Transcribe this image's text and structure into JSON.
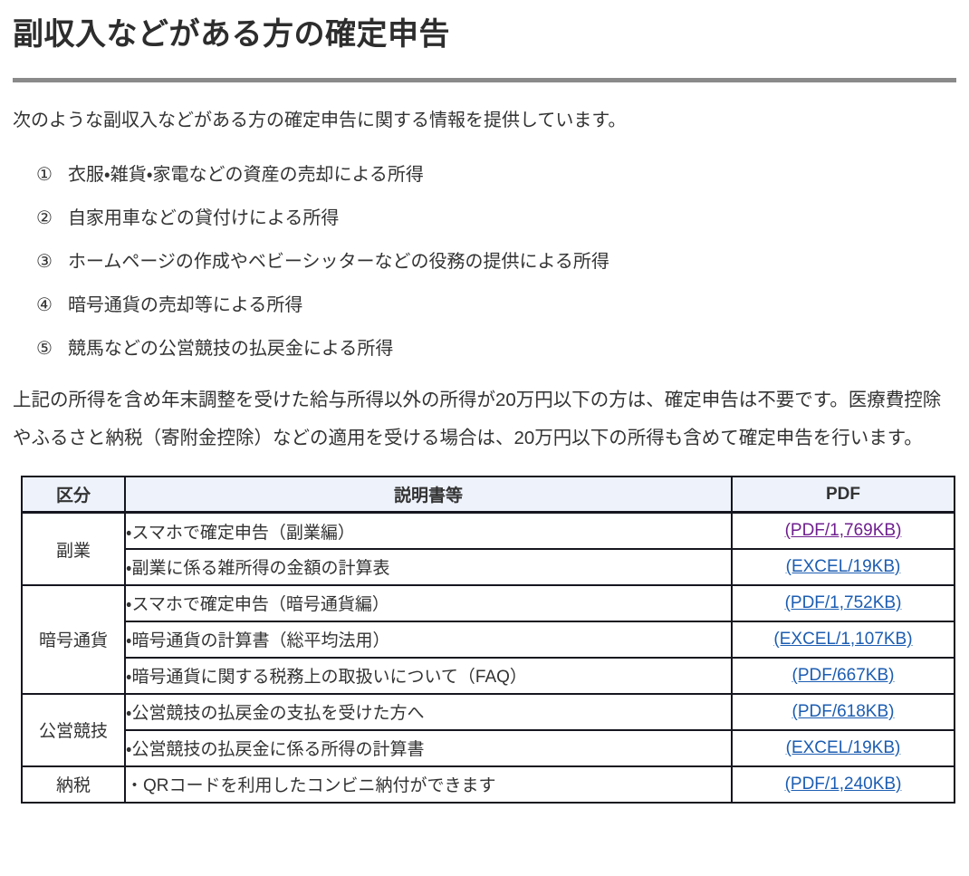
{
  "page": {
    "title": "副収入などがある方の確定申告",
    "intro": "次のような副収入などがある方の確定申告に関する情報を提供しています。",
    "list_items": [
      {
        "marker": "①",
        "text": "衣服・雑貨・家電などの資産の売却による所得"
      },
      {
        "marker": "②",
        "text": "自家用車などの貸付けによる所得"
      },
      {
        "marker": "③",
        "text": "ホームページの作成やベビーシッターなどの役務の提供による所得"
      },
      {
        "marker": "④",
        "text": "暗号通貨の売却等による所得"
      },
      {
        "marker": "⑤",
        "text": "競馬などの公営競技の払戻金による所得"
      }
    ],
    "note": "上記の所得を含め年末調整を受けた給与所得以外の所得が20万円以下の方は、確定申告は不要です。医療費控除やふるさと納税（寄附金控除）などの適用を受ける場合は、20万円以下の所得も含めて確定申告を行います。"
  },
  "table": {
    "headers": [
      "区分",
      "説明書等",
      "PDF"
    ],
    "groups": [
      {
        "category": "副業",
        "rows": [
          {
            "description": "・スマホで確定申告（副業編）",
            "link": "(PDF/1,769KB)",
            "visited": true
          },
          {
            "description": "・副業に係る雑所得の金額の計算表",
            "link": "(EXCEL/19KB)",
            "visited": false
          }
        ]
      },
      {
        "category": "暗号通貨",
        "rows": [
          {
            "description": "・スマホで確定申告（暗号通貨編）",
            "link": "(PDF/1,752KB)",
            "visited": false
          },
          {
            "description": "・暗号通貨の計算書（総平均法用）",
            "link": "(EXCEL/1,107KB)",
            "visited": false
          },
          {
            "description": "・暗号通貨に関する税務上の取扱いについて（FAQ）",
            "link": "(PDF/667KB)",
            "visited": false
          }
        ]
      },
      {
        "category": "公営競技",
        "rows": [
          {
            "description": "・公営競技の払戻金の支払を受けた方へ",
            "link": "(PDF/618KB)",
            "visited": false
          },
          {
            "description": "・公営競技の払戻金に係る所得の計算書",
            "link": "(EXCEL/19KB)",
            "visited": false
          }
        ]
      },
      {
        "category": "納税",
        "rows": [
          {
            "description": "・QRコードを利用したコンビニ納付ができます",
            "link": "(PDF/1,240KB)",
            "visited": false
          }
        ]
      }
    ]
  },
  "colors": {
    "text": "#333333",
    "title_rule": "#8a8a8a",
    "table_border": "#15161f",
    "table_header_bg": "#edf2fb",
    "link_blue": "#1c5db2",
    "link_visited_purple": "#6f1f8f"
  }
}
